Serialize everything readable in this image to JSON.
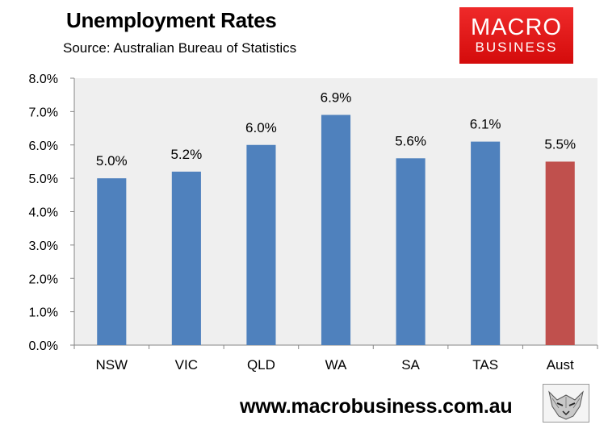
{
  "header": {
    "title": "Unemployment Rates",
    "subtitle": "Source: Australian Bureau of Statistics"
  },
  "logo": {
    "line1": "MACRO",
    "line2": "BUSINESS"
  },
  "footer": {
    "url": "www.macrobusiness.com.au"
  },
  "colors": {
    "bar": "#4f81bd",
    "highlight": "#c0504d",
    "plot_bg": "#efefef",
    "logo_red": "#e01818"
  },
  "chart_data": {
    "type": "bar",
    "title": "Unemployment Rates",
    "categories": [
      "NSW",
      "VIC",
      "QLD",
      "WA",
      "SA",
      "TAS",
      "Aust"
    ],
    "values": [
      5.0,
      5.2,
      6.0,
      6.9,
      5.6,
      6.1,
      5.5
    ],
    "data_labels": [
      "5.0%",
      "5.2%",
      "6.0%",
      "6.9%",
      "5.6%",
      "6.1%",
      "5.5%"
    ],
    "highlight_category": "Aust",
    "ylim": [
      0,
      8
    ],
    "yticks": [
      0,
      1,
      2,
      3,
      4,
      5,
      6,
      7,
      8
    ],
    "ytick_labels": [
      "0.0%",
      "1.0%",
      "2.0%",
      "3.0%",
      "4.0%",
      "5.0%",
      "6.0%",
      "7.0%",
      "8.0%"
    ],
    "xlabel": "",
    "ylabel": "",
    "grid": false,
    "legend": false
  }
}
